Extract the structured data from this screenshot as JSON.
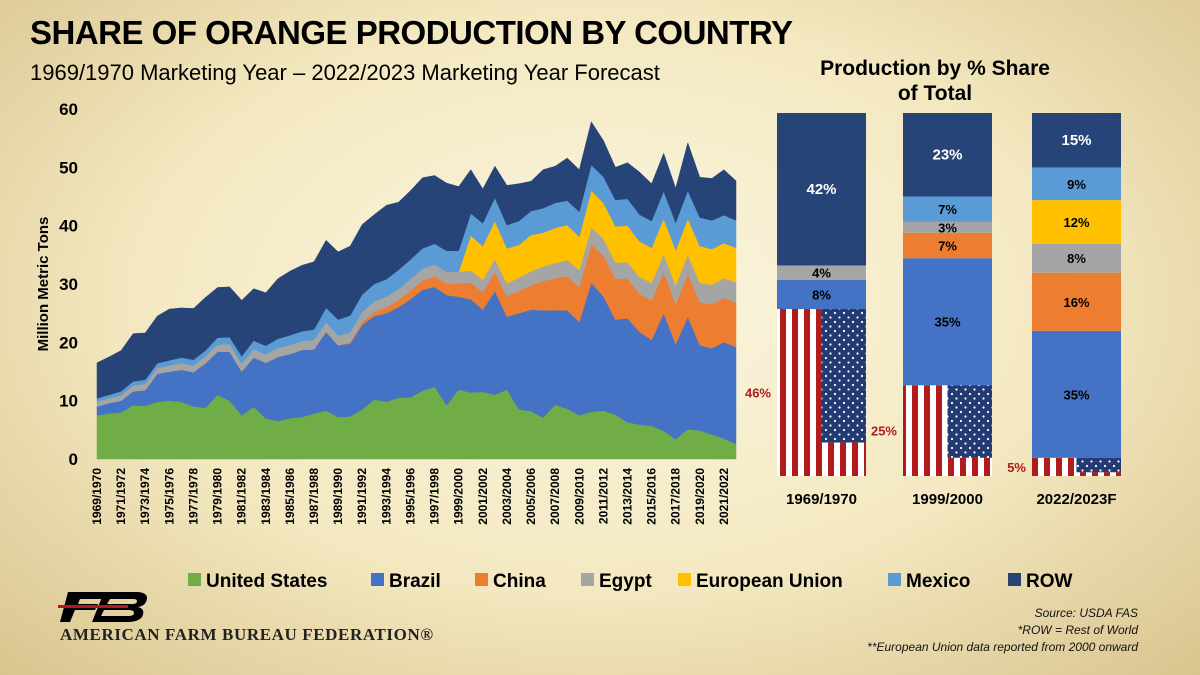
{
  "title": "SHARE OF ORANGE PRODUCTION BY COUNTRY",
  "subtitle": "1969/1970 Marketing Year – 2022/2023 Marketing Year Forecast",
  "bar_title_line1": "Production by % Share",
  "bar_title_line2": "of Total",
  "org_name": "AMERICAN FARM BUREAU FEDERATION®",
  "notes": [
    "Source: USDA FAS",
    "*ROW = Rest of World",
    "**European Union data reported from 2000 onward"
  ],
  "colors": {
    "United States": "#70ad47",
    "Brazil": "#4472c4",
    "China": "#ed7d31",
    "Egypt": "#a5a5a5",
    "European Union": "#ffc000",
    "Mexico": "#5b9bd5",
    "ROW": "#264478",
    "flag_red": "#b01c1c",
    "flag_blue": "#233a73"
  },
  "chart_data": [
    {
      "type": "area",
      "stacked": true,
      "ylabel": "Million Metric Tons",
      "ylim": [
        0,
        60
      ],
      "yticks": [
        0,
        10,
        20,
        30,
        40,
        50,
        60
      ],
      "x_tick_labels": [
        "1969/1970",
        "1971/1972",
        "1973/1974",
        "1975/1976",
        "1977/1978",
        "1979/1980",
        "1981/1982",
        "1983/1984",
        "1985/1986",
        "1987/1988",
        "1989/1990",
        "1991/1992",
        "1993/1994",
        "1995/1996",
        "1997/1998",
        "1999/2000",
        "2001/2002",
        "2003/2004",
        "2005/2006",
        "2007/2008",
        "2009/2010",
        "2011/2012",
        "2013/2014",
        "2015/2016",
        "2017/2018",
        "2019/2020",
        "2021/2022"
      ],
      "legend": [
        "United States",
        "Brazil",
        "China",
        "Egypt",
        "European Union",
        "Mexico",
        "ROW"
      ],
      "legend_position": "bottom",
      "series": [
        {
          "name": "United States",
          "values": [
            7.5,
            7.8,
            8,
            9.2,
            9.1,
            9.8,
            10,
            9.8,
            9,
            8.8,
            11,
            10,
            7.5,
            8.9,
            7,
            6.5,
            7,
            7.2,
            7.8,
            8.3,
            7.2,
            7.3,
            8.5,
            10.2,
            9.8,
            10.5,
            10.6,
            11.7,
            12.4,
            9.2,
            11.9,
            11.4,
            11.5,
            11,
            11.9,
            8.5,
            8.2,
            7.1,
            9.3,
            8.6,
            7.5,
            8.1,
            8.3,
            7.6,
            6.3,
            5.9,
            5.7,
            4.8,
            3.4,
            5.1,
            4.9,
            4.2,
            3.5,
            2.6
          ]
        },
        {
          "name": "Brazil",
          "values": [
            1.5,
            1.8,
            2,
            2.4,
            2.7,
            4.8,
            5,
            5.5,
            5.9,
            7.6,
            7.4,
            8.4,
            7.5,
            8.5,
            9.5,
            11,
            11,
            11.5,
            11,
            13.5,
            12.3,
            12.5,
            14.5,
            14.3,
            15.2,
            15.5,
            16.8,
            17.3,
            17.1,
            18.9,
            15.9,
            16,
            14.1,
            17.8,
            12.5,
            16.5,
            17.4,
            18.4,
            16.2,
            16.9,
            16,
            22.1,
            19.6,
            16.3,
            17.8,
            15.9,
            14.7,
            20.2,
            16.3,
            19.3,
            14.6,
            14.8,
            16.5,
            16.6
          ]
        },
        {
          "name": "China",
          "values": [
            0,
            0,
            0,
            0,
            0,
            0,
            0,
            0,
            0,
            0,
            0,
            0,
            0,
            0,
            0,
            0,
            0,
            0,
            0,
            0,
            0,
            0.2,
            0.5,
            0.7,
            1,
            1.2,
            1.5,
            1.6,
            1.8,
            2,
            2.3,
            2.8,
            3,
            3.3,
            3.5,
            3.8,
            4.2,
            5,
            5.5,
            5.8,
            6,
            6.5,
            7,
            7,
            6.8,
            6.5,
            6.8,
            7,
            6.9,
            7.3,
            7.4,
            7.5,
            7.6,
            7.6
          ]
        },
        {
          "name": "Egypt",
          "values": [
            0.8,
            0.8,
            0.9,
            1,
            1,
            1,
            1,
            1.1,
            1.1,
            1.2,
            1.2,
            1.3,
            1.3,
            1.4,
            1.4,
            1.5,
            1.5,
            1.5,
            1.6,
            1.6,
            1.6,
            1.7,
            1.7,
            1.8,
            1.8,
            1.9,
            1.9,
            2,
            2,
            2,
            2,
            2.1,
            2.1,
            2.2,
            2.2,
            2.3,
            2.4,
            2.5,
            2.6,
            2.8,
            2.9,
            3,
            2.9,
            2.8,
            2.8,
            2.9,
            3,
            3.1,
            3.2,
            3.3,
            3.3,
            3.4,
            3.4,
            3.5
          ]
        },
        {
          "name": "European Union",
          "values": [
            0,
            0,
            0,
            0,
            0,
            0,
            0,
            0,
            0,
            0,
            0,
            0,
            0,
            0,
            0,
            0,
            0,
            0,
            0,
            0,
            0,
            0,
            0,
            0,
            0,
            0,
            0,
            0,
            0,
            0,
            0,
            6,
            5.8,
            6.5,
            6,
            5.6,
            6.2,
            5.8,
            6,
            6,
            5.7,
            6.3,
            6.1,
            6.2,
            6.3,
            6.1,
            6,
            6.1,
            6,
            6.2,
            6.3,
            6.1,
            6,
            5.9
          ]
        },
        {
          "name": "Mexico",
          "values": [
            0.6,
            0.6,
            0.7,
            0.7,
            0.8,
            0.8,
            0.9,
            1,
            1,
            1,
            1.2,
            1.2,
            1.3,
            1.5,
            1.5,
            1.6,
            1.7,
            1.7,
            1.8,
            2.5,
            2.8,
            2.9,
            3,
            3,
            3,
            3.3,
            3.4,
            3.5,
            3.6,
            3.6,
            3.6,
            3.8,
            3.9,
            4,
            4,
            4.1,
            4.1,
            4.2,
            4.3,
            4.2,
            4.3,
            4.4,
            4.5,
            4.5,
            4.6,
            4.6,
            4.6,
            4.7,
            4.7,
            4.8,
            4.9,
            4.9,
            4.8,
            4.7
          ]
        },
        {
          "name": "ROW",
          "values": [
            6.1,
            6.5,
            7,
            8.2,
            8,
            8.1,
            8.8,
            8.5,
            8.8,
            9.1,
            8.6,
            8.6,
            9.6,
            8.9,
            9.1,
            10.3,
            11,
            11.3,
            11.6,
            11.6,
            11.6,
            11.9,
            12,
            11.9,
            12.7,
            11.6,
            11.8,
            12.1,
            11.7,
            11.6,
            11,
            7.5,
            5.9,
            5.4,
            6.8,
            6.4,
            5.1,
            6.6,
            6.3,
            7.3,
            7.2,
            7.4,
            6.2,
            5.6,
            6.2,
            7.3,
            6.4,
            6.5,
            5.9,
            8.2,
            6.9,
            7.2,
            7.8,
            6.8
          ]
        }
      ]
    },
    {
      "type": "bar",
      "stacked": true,
      "percent": true,
      "title": "Production by % Share of Total",
      "categories": [
        "1969/1970",
        "1999/2000",
        "2022/2023F"
      ],
      "series": [
        {
          "name": "United States",
          "values": [
            46,
            25,
            5
          ]
        },
        {
          "name": "Brazil",
          "values": [
            8,
            35,
            35
          ]
        },
        {
          "name": "China",
          "values": [
            0,
            7,
            16
          ]
        },
        {
          "name": "Egypt",
          "values": [
            4,
            3,
            8
          ]
        },
        {
          "name": "European Union",
          "values": [
            0,
            0,
            12
          ]
        },
        {
          "name": "Mexico",
          "values": [
            0,
            7,
            9
          ]
        },
        {
          "name": "ROW",
          "values": [
            42,
            23,
            15
          ]
        }
      ]
    }
  ]
}
